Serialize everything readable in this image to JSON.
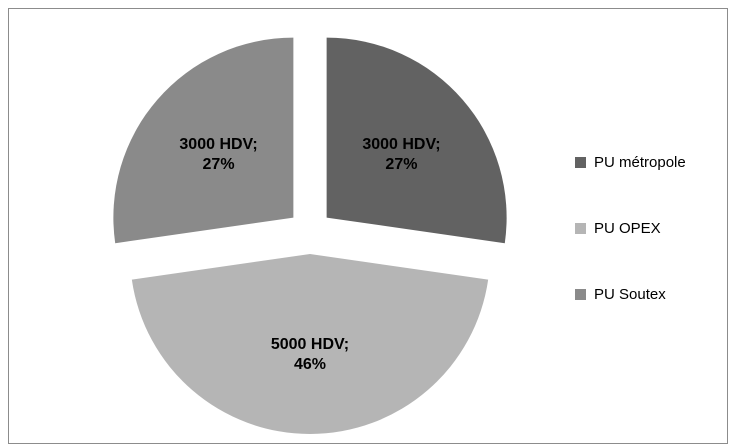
{
  "chart_data": {
    "type": "pie",
    "exploded": true,
    "slices": [
      {
        "name": "PU métropole",
        "value": 3000,
        "percent": 27,
        "label_line1": "3000 HDV;",
        "label_line2": "27%",
        "color": "#626262"
      },
      {
        "name": "PU OPEX",
        "value": 5000,
        "percent": 46,
        "label_line1": "5000 HDV;",
        "label_line2": "46%",
        "color": "#b5b5b5"
      },
      {
        "name": "PU Soutex",
        "value": 3000,
        "percent": 27,
        "label_line1": "3000 HDV;",
        "label_line2": "27%",
        "color": "#8a8a8a"
      }
    ],
    "legend_placement": "right"
  },
  "legend": {
    "items": [
      {
        "label": "PU métropole",
        "color": "#626262"
      },
      {
        "label": "PU OPEX",
        "color": "#b5b5b5"
      },
      {
        "label": "PU Soutex",
        "color": "#8a8a8a"
      }
    ]
  }
}
